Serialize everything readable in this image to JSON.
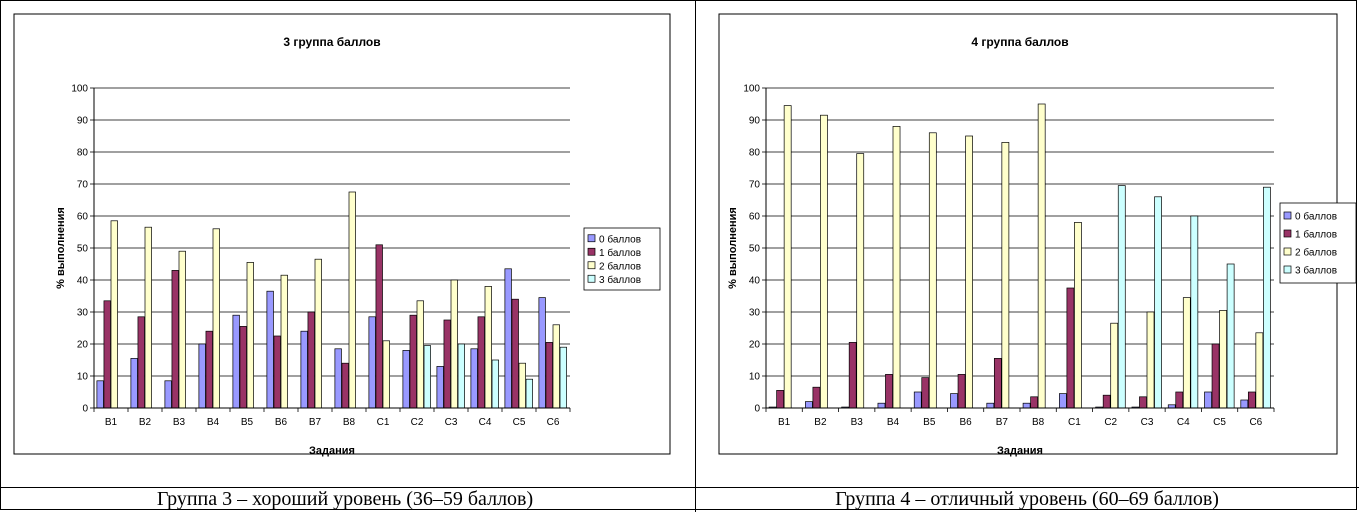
{
  "colors": {
    "s0": "#9999ff",
    "s1": "#993366",
    "s2": "#ffffcc",
    "s3": "#ccffff"
  },
  "captions": [
    "Группа 3 – хороший уровень (36–59 баллов)",
    "Группа 4 – отличный уровень (60–69 баллов)"
  ],
  "chart_data": [
    {
      "type": "bar",
      "title": "3 группа баллов",
      "xlabel": "Задания",
      "ylabel": "% выполнения",
      "ylim": [
        0,
        100
      ],
      "yticks": [
        0,
        10,
        20,
        30,
        40,
        50,
        60,
        70,
        80,
        90,
        100
      ],
      "grid": true,
      "legend": "right",
      "categories": [
        "B1",
        "B2",
        "B3",
        "B4",
        "B5",
        "B6",
        "B7",
        "B8",
        "C1",
        "C2",
        "C3",
        "C4",
        "C5",
        "C6"
      ],
      "series": [
        {
          "name": "0 баллов",
          "values": [
            8.5,
            15.5,
            8.5,
            20,
            29,
            36.5,
            24,
            18.5,
            28.5,
            18,
            13,
            18.5,
            43.5,
            34.5
          ]
        },
        {
          "name": "1 баллов",
          "values": [
            33.5,
            28.5,
            43,
            24,
            25.5,
            22.5,
            30,
            14,
            51,
            29,
            27.5,
            28.5,
            34,
            20.5
          ]
        },
        {
          "name": "2 баллов",
          "values": [
            58.5,
            56.5,
            49,
            56,
            45.5,
            41.5,
            46.5,
            67.5,
            21,
            33.5,
            40,
            38,
            14,
            26
          ]
        },
        {
          "name": "3 баллов",
          "values": [
            null,
            null,
            null,
            null,
            null,
            null,
            null,
            null,
            null,
            19.5,
            20,
            15,
            9,
            19
          ]
        }
      ]
    },
    {
      "type": "bar",
      "title": "4 группа баллов",
      "xlabel": "Задания",
      "ylabel": "% выполнения",
      "ylim": [
        0,
        100
      ],
      "yticks": [
        0,
        10,
        20,
        30,
        40,
        50,
        60,
        70,
        80,
        90,
        100
      ],
      "grid": true,
      "legend": "right",
      "categories": [
        "B1",
        "B2",
        "B3",
        "B4",
        "B5",
        "B6",
        "B7",
        "B8",
        "C1",
        "C2",
        "C3",
        "C4",
        "C5",
        "C6"
      ],
      "series": [
        {
          "name": "0 баллов",
          "values": [
            0.3,
            2,
            0.3,
            1.5,
            5,
            4.5,
            1.5,
            1.5,
            4.5,
            0.3,
            0.3,
            1,
            5,
            2.5
          ]
        },
        {
          "name": "1 баллов",
          "values": [
            5.5,
            6.5,
            20.5,
            10.5,
            9.5,
            10.5,
            15.5,
            3.5,
            37.5,
            4,
            3.5,
            5,
            20,
            5
          ]
        },
        {
          "name": "2 баллов",
          "values": [
            94.5,
            91.5,
            79.5,
            88,
            86,
            85,
            83,
            95,
            58,
            26.5,
            30,
            34.5,
            30.5,
            23.5
          ]
        },
        {
          "name": "3 баллов",
          "values": [
            null,
            null,
            null,
            null,
            null,
            null,
            null,
            null,
            null,
            69.5,
            66,
            60,
            45,
            69
          ]
        }
      ]
    }
  ]
}
